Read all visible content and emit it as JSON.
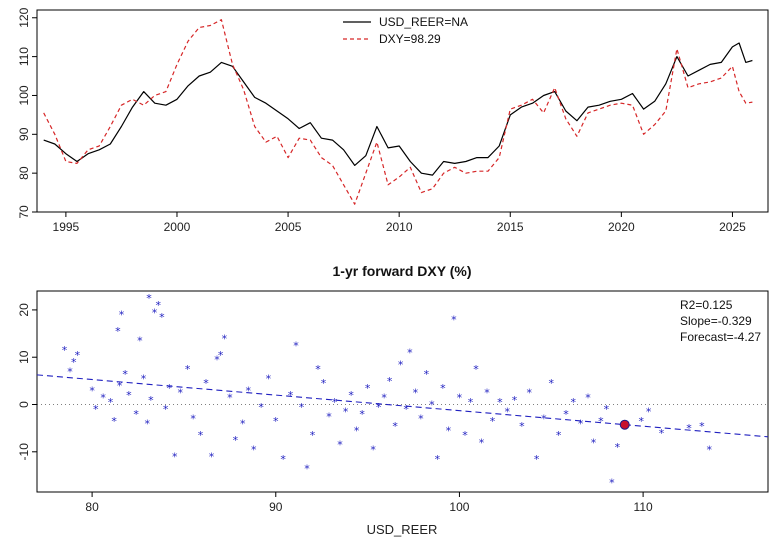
{
  "chart_data": [
    {
      "type": "line",
      "title": "",
      "xlabel": "",
      "ylabel": "",
      "xlim": [
        1993.7,
        2026.6
      ],
      "ylim": [
        70,
        122
      ],
      "x_ticks": [
        1995,
        2000,
        2005,
        2010,
        2015,
        2020,
        2025
      ],
      "y_ticks": [
        70,
        80,
        90,
        100,
        110,
        120
      ],
      "legend": {
        "placement": "top-center",
        "entries": [
          "USD_REER=NA",
          "DXY=98.29"
        ]
      },
      "series": [
        {
          "name": "USD_REER=NA",
          "color": "#000000",
          "dash": "solid",
          "x": [
            1994.0,
            1994.5,
            1995.0,
            1995.5,
            1996.0,
            1996.5,
            1997.0,
            1997.5,
            1998.0,
            1998.5,
            1999.0,
            1999.5,
            2000.0,
            2000.5,
            2001.0,
            2001.5,
            2002.0,
            2002.5,
            2003.0,
            2003.5,
            2004.0,
            2004.5,
            2005.0,
            2005.5,
            2006.0,
            2006.5,
            2007.0,
            2007.5,
            2008.0,
            2008.5,
            2009.0,
            2009.5,
            2010.0,
            2010.5,
            2011.0,
            2011.5,
            2012.0,
            2012.5,
            2013.0,
            2013.5,
            2014.0,
            2014.5,
            2015.0,
            2015.5,
            2016.0,
            2016.5,
            2017.0,
            2017.5,
            2018.0,
            2018.5,
            2019.0,
            2019.5,
            2020.0,
            2020.5,
            2021.0,
            2021.5,
            2022.0,
            2022.5,
            2023.0,
            2023.5,
            2024.0,
            2024.5,
            2025.0,
            2025.3,
            2025.6,
            2025.9
          ],
          "y": [
            88.5,
            87.5,
            85.0,
            83.0,
            85.0,
            86.0,
            87.5,
            92.0,
            97.0,
            101.0,
            98.0,
            97.5,
            99.0,
            102.5,
            105.0,
            106.0,
            108.5,
            107.5,
            103.5,
            99.5,
            98.0,
            96.0,
            94.0,
            91.5,
            93.0,
            89.0,
            88.5,
            86.0,
            82.0,
            84.5,
            92.0,
            86.5,
            87.0,
            83.0,
            80.0,
            79.5,
            83.0,
            82.5,
            83.0,
            84.0,
            84.0,
            87.0,
            95.0,
            97.0,
            98.0,
            100.0,
            101.0,
            96.0,
            93.5,
            97.0,
            97.5,
            98.5,
            99.0,
            100.5,
            96.5,
            98.5,
            103.0,
            110.0,
            105.0,
            106.5,
            108.0,
            108.5,
            112.5,
            113.5,
            108.5,
            109.0
          ]
        },
        {
          "name": "DXY=98.29",
          "color": "#d62728",
          "dash": "dashed",
          "x": [
            1994.0,
            1994.5,
            1995.0,
            1995.5,
            1996.0,
            1996.5,
            1997.0,
            1997.5,
            1998.0,
            1998.5,
            1999.0,
            1999.5,
            2000.0,
            2000.5,
            2001.0,
            2001.5,
            2002.0,
            2002.5,
            2003.0,
            2003.5,
            2004.0,
            2004.5,
            2005.0,
            2005.5,
            2006.0,
            2006.5,
            2007.0,
            2007.5,
            2008.0,
            2008.5,
            2009.0,
            2009.5,
            2010.0,
            2010.5,
            2011.0,
            2011.5,
            2012.0,
            2012.5,
            2013.0,
            2013.5,
            2014.0,
            2014.5,
            2015.0,
            2015.5,
            2016.0,
            2016.5,
            2017.0,
            2017.5,
            2018.0,
            2018.5,
            2019.0,
            2019.5,
            2020.0,
            2020.5,
            2021.0,
            2021.5,
            2022.0,
            2022.5,
            2023.0,
            2023.5,
            2024.0,
            2024.5,
            2025.0,
            2025.3,
            2025.6,
            2025.9
          ],
          "y": [
            95.5,
            90.0,
            83.0,
            82.5,
            86.0,
            87.0,
            92.0,
            97.5,
            99.0,
            97.5,
            100.0,
            101.0,
            108.0,
            114.0,
            117.5,
            118.0,
            119.5,
            108.0,
            101.5,
            92.0,
            88.0,
            89.5,
            84.0,
            89.0,
            88.5,
            84.0,
            82.0,
            77.0,
            72.0,
            80.0,
            88.0,
            77.0,
            79.0,
            81.5,
            75.0,
            76.0,
            80.0,
            81.5,
            80.0,
            80.5,
            80.5,
            84.0,
            96.5,
            97.5,
            99.0,
            95.5,
            102.0,
            94.0,
            89.5,
            95.5,
            96.5,
            97.5,
            98.0,
            97.5,
            90.0,
            92.5,
            96.0,
            112.0,
            102.0,
            103.0,
            103.5,
            104.5,
            107.5,
            101.0,
            98.0,
            98.3
          ]
        }
      ]
    },
    {
      "type": "scatter",
      "title": "1-yr forward DXY (%)",
      "xlabel": "USD_REER",
      "ylabel": "",
      "xlim": [
        77.0,
        116.8
      ],
      "ylim": [
        -18.5,
        24.0
      ],
      "x_ticks": [
        80,
        90,
        100,
        110
      ],
      "y_ticks": [
        -10,
        0,
        10,
        20
      ],
      "zero_line": true,
      "annotations": [
        "R2=0.125",
        "Slope=-0.329",
        "Forecast=-4.27"
      ],
      "regression": {
        "slope": -0.329,
        "intercept": 31.6
      },
      "current_point": {
        "x": 109.0,
        "y": -4.27
      },
      "marker": "*",
      "point_color": "#2020c0",
      "highlight_color": "#c8102e",
      "points": [
        [
          78.5,
          11.5
        ],
        [
          79.0,
          9.0
        ],
        [
          79.2,
          10.5
        ],
        [
          78.8,
          7.0
        ],
        [
          80.0,
          3.0
        ],
        [
          80.6,
          1.5
        ],
        [
          80.2,
          -1.0
        ],
        [
          81.0,
          0.5
        ],
        [
          81.5,
          4.0
        ],
        [
          81.2,
          -3.5
        ],
        [
          81.8,
          6.5
        ],
        [
          82.0,
          2.0
        ],
        [
          82.4,
          -2.0
        ],
        [
          81.4,
          15.5
        ],
        [
          81.6,
          19.0
        ],
        [
          82.6,
          13.5
        ],
        [
          82.8,
          5.5
        ],
        [
          83.0,
          -4.0
        ],
        [
          83.2,
          1.0
        ],
        [
          83.4,
          19.5
        ],
        [
          83.6,
          21.0
        ],
        [
          83.1,
          22.5
        ],
        [
          83.8,
          18.5
        ],
        [
          84.0,
          -1.0
        ],
        [
          84.2,
          3.5
        ],
        [
          84.5,
          -11.0
        ],
        [
          84.8,
          2.5
        ],
        [
          85.2,
          7.5
        ],
        [
          85.5,
          -3.0
        ],
        [
          85.9,
          -6.5
        ],
        [
          86.2,
          4.5
        ],
        [
          86.5,
          -11.0
        ],
        [
          86.8,
          9.5
        ],
        [
          87.0,
          10.5
        ],
        [
          87.2,
          14.0
        ],
        [
          87.5,
          1.5
        ],
        [
          87.8,
          -7.5
        ],
        [
          88.2,
          -4.0
        ],
        [
          88.5,
          3.0
        ],
        [
          88.8,
          -9.5
        ],
        [
          89.2,
          -0.5
        ],
        [
          89.6,
          5.5
        ],
        [
          90.0,
          -3.5
        ],
        [
          90.4,
          -11.5
        ],
        [
          90.8,
          2.0
        ],
        [
          91.1,
          12.5
        ],
        [
          91.4,
          -0.5
        ],
        [
          91.7,
          -13.5
        ],
        [
          92.0,
          -6.5
        ],
        [
          92.3,
          7.5
        ],
        [
          92.6,
          4.5
        ],
        [
          92.9,
          -2.5
        ],
        [
          93.2,
          0.5
        ],
        [
          93.5,
          -8.5
        ],
        [
          93.8,
          -1.5
        ],
        [
          94.1,
          2.0
        ],
        [
          94.4,
          -5.5
        ],
        [
          94.7,
          -2.0
        ],
        [
          95.0,
          3.5
        ],
        [
          95.3,
          -9.5
        ],
        [
          95.6,
          -0.5
        ],
        [
          95.9,
          1.5
        ],
        [
          96.2,
          5.0
        ],
        [
          96.5,
          -4.5
        ],
        [
          96.8,
          8.5
        ],
        [
          97.1,
          -1.0
        ],
        [
          97.3,
          11.0
        ],
        [
          97.6,
          2.5
        ],
        [
          97.9,
          -3.0
        ],
        [
          98.2,
          6.5
        ],
        [
          98.5,
          0.0
        ],
        [
          98.8,
          -11.5
        ],
        [
          99.1,
          3.5
        ],
        [
          99.4,
          -5.5
        ],
        [
          99.7,
          18.0
        ],
        [
          100.0,
          1.5
        ],
        [
          100.3,
          -6.5
        ],
        [
          100.6,
          0.5
        ],
        [
          100.9,
          7.5
        ],
        [
          101.2,
          -8.0
        ],
        [
          101.5,
          2.5
        ],
        [
          101.8,
          -3.5
        ],
        [
          102.2,
          0.5
        ],
        [
          102.6,
          -1.5
        ],
        [
          103.0,
          1.0
        ],
        [
          103.4,
          -4.5
        ],
        [
          103.8,
          2.5
        ],
        [
          104.2,
          -11.5
        ],
        [
          104.6,
          -3.0
        ],
        [
          105.0,
          4.5
        ],
        [
          105.4,
          -6.5
        ],
        [
          105.8,
          -2.0
        ],
        [
          106.2,
          0.5
        ],
        [
          106.6,
          -4.0
        ],
        [
          107.0,
          1.5
        ],
        [
          107.3,
          -8.0
        ],
        [
          107.7,
          -3.5
        ],
        [
          108.0,
          -1.0
        ],
        [
          108.3,
          -16.5
        ],
        [
          108.6,
          -9.0
        ],
        [
          109.9,
          -3.5
        ],
        [
          110.3,
          -1.5
        ],
        [
          111.0,
          -6.0
        ],
        [
          112.5,
          -5.0
        ],
        [
          113.2,
          -4.5
        ],
        [
          113.6,
          -9.5
        ]
      ]
    }
  ]
}
